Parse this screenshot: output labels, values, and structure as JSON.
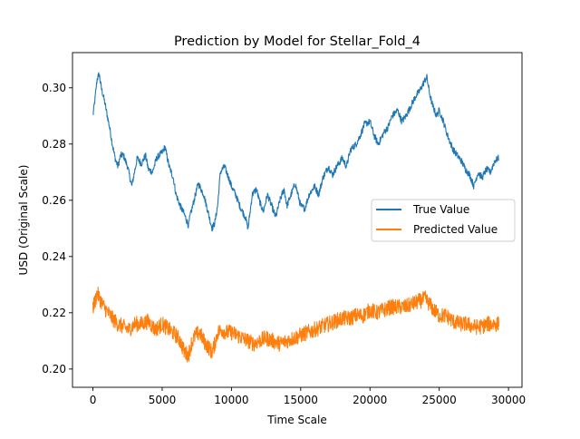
{
  "chart_data": {
    "type": "line",
    "title": "Prediction by Model for Stellar_Fold_4",
    "xlabel": "Time Scale",
    "ylabel": "USD (Original Scale)",
    "xlim": [
      -1475,
      30975
    ],
    "ylim": [
      0.1935,
      0.3125
    ],
    "x_ticks": [
      0,
      5000,
      10000,
      15000,
      20000,
      25000,
      30000
    ],
    "x_tick_labels": [
      "0",
      "5000",
      "10000",
      "15000",
      "20000",
      "25000",
      "30000"
    ],
    "y_ticks": [
      0.2,
      0.22,
      0.24,
      0.26,
      0.28,
      0.3
    ],
    "y_tick_labels": [
      "0.20",
      "0.22",
      "0.24",
      "0.26",
      "0.28",
      "0.30"
    ],
    "grid": false,
    "legend_position": "center-right",
    "series": [
      {
        "name": "True Value",
        "color": "#1f77b4",
        "noise": 0.0012,
        "x": [
          0,
          150,
          300,
          450,
          600,
          800,
          1000,
          1200,
          1400,
          1600,
          1800,
          2000,
          2200,
          2500,
          2800,
          3000,
          3200,
          3500,
          3800,
          4000,
          4300,
          4600,
          5000,
          5200,
          5500,
          5800,
          6000,
          6300,
          6600,
          6900,
          7000,
          7300,
          7600,
          8000,
          8300,
          8600,
          8800,
          9000,
          9200,
          9500,
          9800,
          10000,
          10300,
          10600,
          11000,
          11200,
          11500,
          11800,
          12000,
          12300,
          12600,
          12900,
          13200,
          13500,
          13800,
          14000,
          14300,
          14600,
          15000,
          15300,
          15600,
          16000,
          16300,
          16600,
          17000,
          17300,
          17600,
          18000,
          18300,
          18600,
          19000,
          19300,
          19600,
          20000,
          20300,
          20600,
          21000,
          21300,
          21600,
          22000,
          22300,
          22600,
          23000,
          23300,
          23600,
          23900,
          24100,
          24300,
          24500,
          24800,
          25000,
          25300,
          25600,
          26000,
          26300,
          26600,
          26900,
          27200,
          27500,
          27800,
          28100,
          28400,
          28700,
          29000,
          29300
        ],
        "y": [
          0.29,
          0.296,
          0.303,
          0.305,
          0.3,
          0.296,
          0.291,
          0.286,
          0.28,
          0.275,
          0.272,
          0.276,
          0.276,
          0.272,
          0.265,
          0.27,
          0.275,
          0.273,
          0.276,
          0.271,
          0.27,
          0.275,
          0.277,
          0.279,
          0.272,
          0.268,
          0.262,
          0.258,
          0.255,
          0.251,
          0.254,
          0.26,
          0.266,
          0.262,
          0.256,
          0.25,
          0.252,
          0.258,
          0.27,
          0.272,
          0.268,
          0.265,
          0.262,
          0.258,
          0.254,
          0.25,
          0.262,
          0.264,
          0.26,
          0.256,
          0.262,
          0.258,
          0.254,
          0.26,
          0.264,
          0.258,
          0.262,
          0.266,
          0.258,
          0.257,
          0.262,
          0.265,
          0.262,
          0.268,
          0.272,
          0.269,
          0.272,
          0.275,
          0.272,
          0.278,
          0.28,
          0.283,
          0.287,
          0.288,
          0.283,
          0.28,
          0.284,
          0.286,
          0.29,
          0.292,
          0.288,
          0.29,
          0.294,
          0.297,
          0.299,
          0.302,
          0.304,
          0.298,
          0.294,
          0.29,
          0.292,
          0.288,
          0.283,
          0.278,
          0.276,
          0.274,
          0.271,
          0.269,
          0.265,
          0.27,
          0.268,
          0.271,
          0.27,
          0.274,
          0.275
        ]
      },
      {
        "name": "Predicted Value",
        "color": "#ff7f0e",
        "noise": 0.0028,
        "x": [
          0,
          150,
          300,
          500,
          800,
          1100,
          1400,
          1800,
          2200,
          2600,
          3000,
          3500,
          4000,
          4500,
          5000,
          5500,
          6000,
          6300,
          6600,
          6900,
          7100,
          7400,
          7700,
          8000,
          8300,
          8600,
          8800,
          9000,
          9300,
          9600,
          10000,
          10400,
          10800,
          11200,
          11600,
          12000,
          12500,
          13000,
          13500,
          14000,
          14500,
          15000,
          15500,
          16000,
          16500,
          17000,
          17500,
          18000,
          18500,
          19000,
          19500,
          20000,
          20500,
          21000,
          21500,
          22000,
          22500,
          23000,
          23500,
          24000,
          24300,
          24600,
          25000,
          25500,
          26000,
          26500,
          27000,
          27500,
          28000,
          28500,
          29000,
          29300
        ],
        "y": [
          0.222,
          0.224,
          0.227,
          0.225,
          0.222,
          0.22,
          0.218,
          0.216,
          0.215,
          0.214,
          0.216,
          0.216,
          0.217,
          0.214,
          0.216,
          0.214,
          0.212,
          0.21,
          0.206,
          0.205,
          0.209,
          0.212,
          0.213,
          0.21,
          0.208,
          0.206,
          0.209,
          0.213,
          0.214,
          0.213,
          0.213,
          0.212,
          0.211,
          0.21,
          0.209,
          0.21,
          0.211,
          0.21,
          0.209,
          0.21,
          0.211,
          0.212,
          0.213,
          0.214,
          0.215,
          0.216,
          0.217,
          0.218,
          0.218,
          0.219,
          0.219,
          0.221,
          0.22,
          0.221,
          0.222,
          0.222,
          0.222,
          0.223,
          0.224,
          0.225,
          0.223,
          0.221,
          0.219,
          0.219,
          0.217,
          0.216,
          0.216,
          0.215,
          0.215,
          0.216,
          0.216,
          0.216
        ]
      }
    ]
  }
}
